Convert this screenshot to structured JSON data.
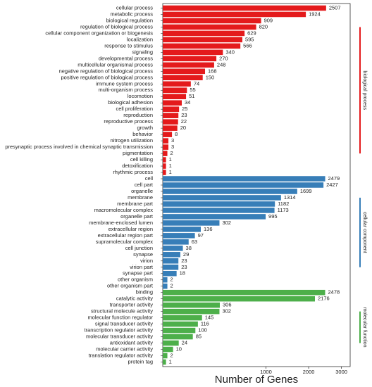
{
  "chart_data": {
    "type": "bar",
    "orientation": "horizontal",
    "xscale": "sqrt",
    "xlabel": "Number of Genes",
    "xlim": [
      0,
      3300
    ],
    "xticks": [
      1000,
      2000,
      3000
    ],
    "series": [
      {
        "name": "biological process",
        "color": "#e41a1c",
        "categories": [
          "cellular process",
          "metabolic process",
          "biological regulation",
          "regulation of biological process",
          "cellular component organization or biogenesis",
          "localization",
          "response to stimulus",
          "signaling",
          "developmental process",
          "multicellular organismal process",
          "negative regulation of biological process",
          "positive regulation of biological process",
          "immune system process",
          "multi-organism process",
          "locomotion",
          "biological adhesion",
          "cell proliferation",
          "reproduction",
          "reproductive process",
          "growth",
          "behavior",
          "nitrogen utilization",
          "presynaptic process involved in chemical synaptic transmission",
          "pigmentation",
          "cell killing",
          "detoxification",
          "rhythmic process"
        ],
        "values": [
          2507,
          1924,
          909,
          820,
          629,
          595,
          566,
          340,
          270,
          248,
          168,
          150,
          74,
          55,
          51,
          34,
          25,
          23,
          22,
          20,
          8,
          3,
          3,
          2,
          1,
          1,
          1
        ]
      },
      {
        "name": "cellular component",
        "color": "#377eb8",
        "categories": [
          "cell",
          "cell part",
          "organelle",
          "membrane",
          "membrane part",
          "macromolecular complex",
          "organelle part",
          "membrane-enclosed lumen",
          "extracellular region",
          "extracellular region part",
          "supramolecular complex",
          "cell junction",
          "synapse",
          "virion",
          "virion part",
          "synapse part",
          "other organism",
          "other organism part"
        ],
        "values": [
          2479,
          2427,
          1699,
          1314,
          1182,
          1173,
          995,
          302,
          136,
          97,
          63,
          38,
          29,
          23,
          23,
          18,
          2,
          2
        ]
      },
      {
        "name": "molecular function",
        "color": "#4daf4a",
        "categories": [
          "binding",
          "catalytic activity",
          "transporter activity",
          "structural molecule activity",
          "molecular function regulator",
          "signal transducer activity",
          "transcription regulator activity",
          "molecular transducer activity",
          "antioxidant activity",
          "molecular carrier activity",
          "translation regulator activity",
          "protein tag"
        ],
        "values": [
          2478,
          2176,
          306,
          302,
          145,
          116,
          100,
          85,
          24,
          10,
          2,
          1
        ]
      }
    ]
  }
}
